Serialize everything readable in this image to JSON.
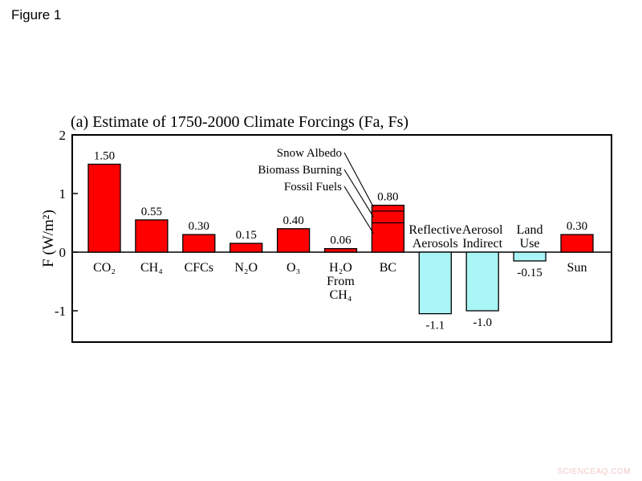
{
  "figure_label": "Figure 1",
  "watermark": "SCIENCEAQ.COM",
  "colors": {
    "positive": "#ff0000",
    "negative": "#aaf5f5",
    "outline": "#000000"
  },
  "chart_data": {
    "type": "bar",
    "title": "(a) Estimate of 1750-2000 Climate Forcings (Fa, Fs)",
    "ylabel": "F (W/m²)",
    "ylim": [
      -1.5,
      2
    ],
    "yticks": [
      {
        "value": 2,
        "label": "2"
      },
      {
        "value": 1,
        "label": "1"
      },
      {
        "value": 0,
        "label": "0"
      },
      {
        "value": -1,
        "label": "-1"
      }
    ],
    "categories": [
      {
        "lines": [
          "CO₂"
        ],
        "value": 1.5,
        "value_label": "1.50"
      },
      {
        "lines": [
          "CH₄"
        ],
        "value": 0.55,
        "value_label": "0.55"
      },
      {
        "lines": [
          "CFCs"
        ],
        "value": 0.3,
        "value_label": "0.30"
      },
      {
        "lines": [
          "N₂O"
        ],
        "value": 0.15,
        "value_label": "0.15"
      },
      {
        "lines": [
          "O₃"
        ],
        "value": 0.4,
        "value_label": "0.40"
      },
      {
        "lines": [
          "H₂O",
          "From",
          "CH₄"
        ],
        "value": 0.06,
        "value_label": "0.06"
      },
      {
        "lines": [
          "BC"
        ],
        "value": 0.8,
        "value_label": "0.80"
      },
      {
        "lines": [
          "Reflective",
          "Aerosols"
        ],
        "value": -1.05,
        "value_label": "-1.1"
      },
      {
        "lines": [
          "Aerosol",
          "Indirect"
        ],
        "value": -1.0,
        "value_label": "-1.0"
      },
      {
        "lines": [
          "Land",
          "Use"
        ],
        "value": -0.15,
        "value_label": "-0.15"
      },
      {
        "lines": [
          "Sun"
        ],
        "value": 0.3,
        "value_label": "0.30"
      }
    ],
    "bc_components": {
      "dividers": [
        0.5,
        0.7
      ],
      "labels": [
        "Snow Albedo",
        "Biomass Burning",
        "Fossil Fuels"
      ]
    }
  }
}
